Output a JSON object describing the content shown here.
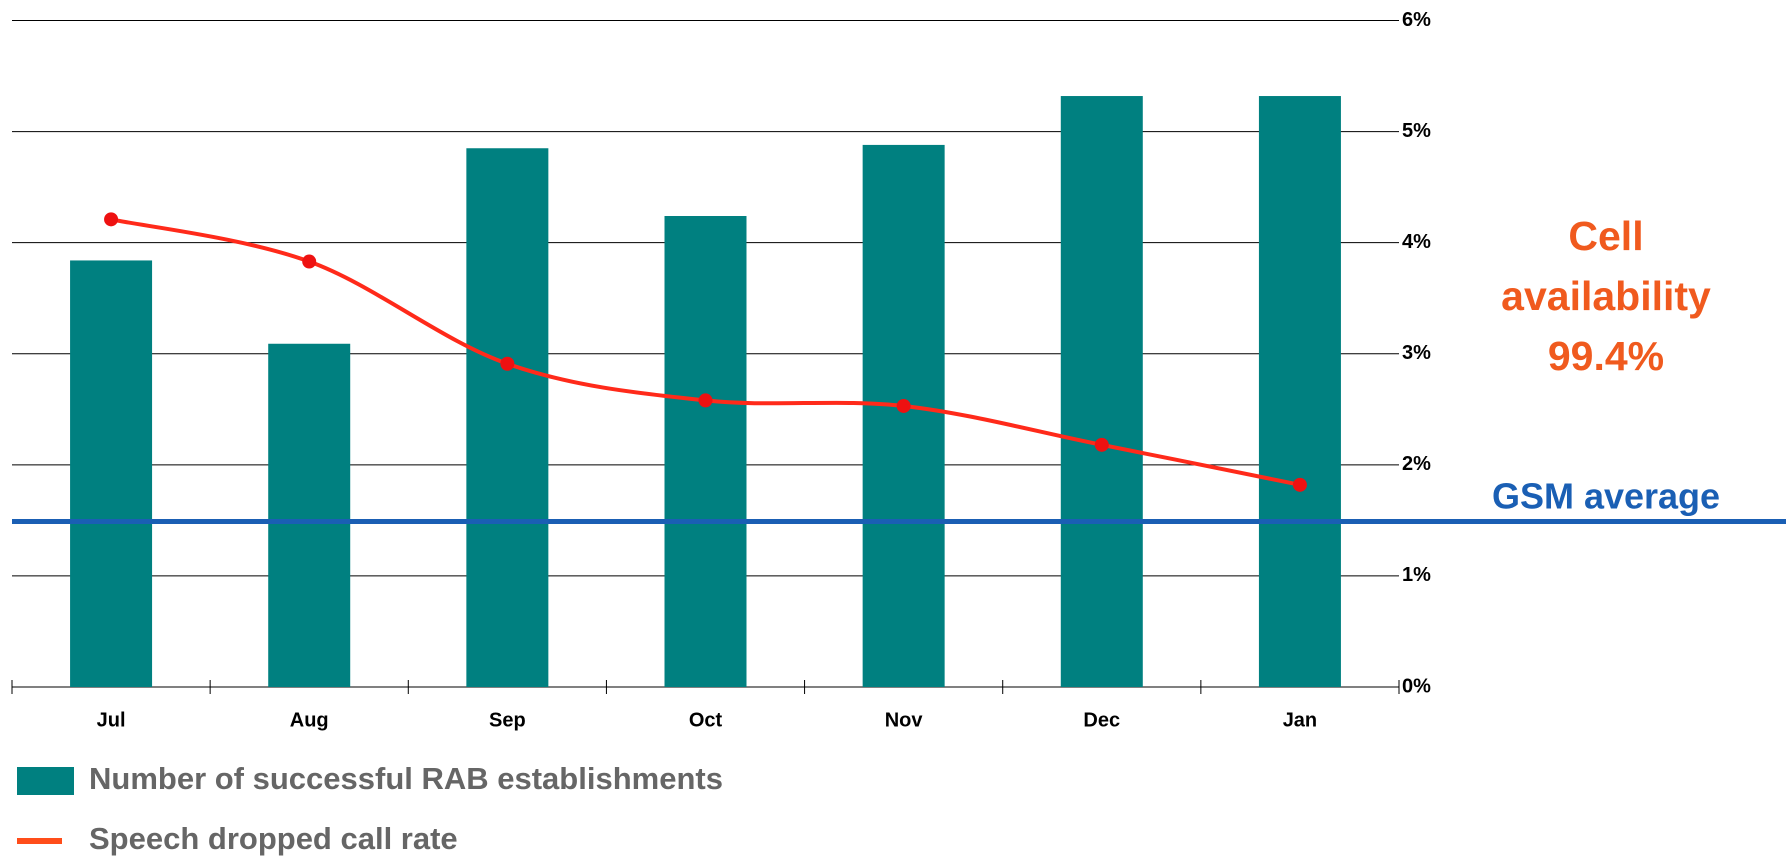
{
  "chart_data": {
    "type": "bar-line",
    "categories": [
      "Jul",
      "Aug",
      "Sep",
      "Oct",
      "Nov",
      "Dec",
      "Jan"
    ],
    "series": [
      {
        "name": "Number of successful RAB establishments",
        "type": "bar",
        "color": "#008080",
        "values": [
          3.84,
          3.09,
          4.85,
          4.24,
          4.88,
          5.32,
          5.32
        ]
      },
      {
        "name": "Speech dropped call rate",
        "type": "line",
        "color": "#ff2a1a",
        "legend_color": "#ff4d1a",
        "values": [
          4.21,
          3.83,
          2.91,
          2.58,
          2.53,
          2.18,
          1.82
        ]
      }
    ],
    "ylim": [
      0,
      6
    ],
    "yticks": [
      {
        "value": 0,
        "label": "0%"
      },
      {
        "value": 1,
        "label": "1%"
      },
      {
        "value": 2,
        "label": "2%"
      },
      {
        "value": 3,
        "label": "3%"
      },
      {
        "value": 4,
        "label": "4%"
      },
      {
        "value": 5,
        "label": "5%"
      },
      {
        "value": 6,
        "label": "6%"
      }
    ],
    "grid": true,
    "reference_line": {
      "label": "GSM average",
      "value": 1.49,
      "color": "#1a5fb4"
    },
    "annotation": {
      "lines": [
        "Cell",
        "availability",
        "99.4%"
      ],
      "color": "#f05a1e"
    },
    "legend": "bottom-left"
  }
}
